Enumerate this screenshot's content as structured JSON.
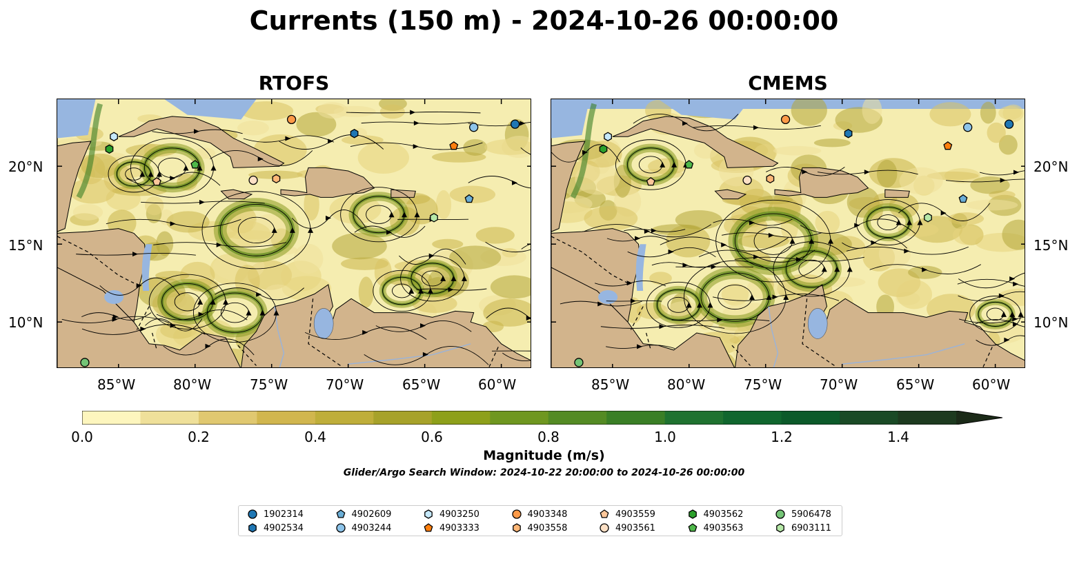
{
  "title": "Currents (150 m) - 2024-10-26 00:00:00",
  "panels": [
    {
      "title": "RTOFS"
    },
    {
      "title": "CMEMS"
    }
  ],
  "x_ticks": [
    "85°W",
    "80°W",
    "75°W",
    "70°W",
    "65°W",
    "60°W"
  ],
  "y_ticks": [
    "20°N",
    "15°N",
    "10°N"
  ],
  "colorbar": {
    "title": "Magnitude (m/s)",
    "labels": [
      "0.0",
      "0.2",
      "0.4",
      "0.6",
      "0.8",
      "1.0",
      "1.2",
      "1.4"
    ],
    "colors": [
      "#fdf6be",
      "#efe09a",
      "#e0c870",
      "#d1b64e",
      "#bfae3a",
      "#a7a22a",
      "#8ea01a",
      "#6f9720",
      "#548b24",
      "#3a7f26",
      "#1f7230",
      "#10662e",
      "#0c5a2a",
      "#1a4a26",
      "#1d3a1f",
      "#1b2a18"
    ]
  },
  "search_window": "Glider/Argo Search Window: 2024-10-22 20:00:00 to 2024-10-26 00:00:00",
  "legend": [
    {
      "id": "1902314",
      "marker": "circle",
      "color": "#1f77b4"
    },
    {
      "id": "4902534",
      "marker": "hexagon",
      "color": "#1f77b4"
    },
    {
      "id": "4902609",
      "marker": "pentagon",
      "color": "#6baed6"
    },
    {
      "id": "4903244",
      "marker": "circle",
      "color": "#8dc4ea"
    },
    {
      "id": "4903250",
      "marker": "hexagon",
      "color": "#c6e9fb"
    },
    {
      "id": "4903333",
      "marker": "pentagon",
      "color": "#ff7f0e"
    },
    {
      "id": "4903348",
      "marker": "circle",
      "color": "#fd9a48"
    },
    {
      "id": "4903558",
      "marker": "hexagon",
      "color": "#fdb777"
    },
    {
      "id": "4903559",
      "marker": "pentagon",
      "color": "#fdc79a"
    },
    {
      "id": "4903561",
      "marker": "circle",
      "color": "#fde0c5"
    },
    {
      "id": "4903562",
      "marker": "hexagon",
      "color": "#2ca02c"
    },
    {
      "id": "4903563",
      "marker": "pentagon",
      "color": "#4fb84a"
    },
    {
      "id": "5906478",
      "marker": "circle",
      "color": "#74c476"
    },
    {
      "id": "6903111",
      "marker": "hexagon",
      "color": "#b6e8a8"
    }
  ]
}
